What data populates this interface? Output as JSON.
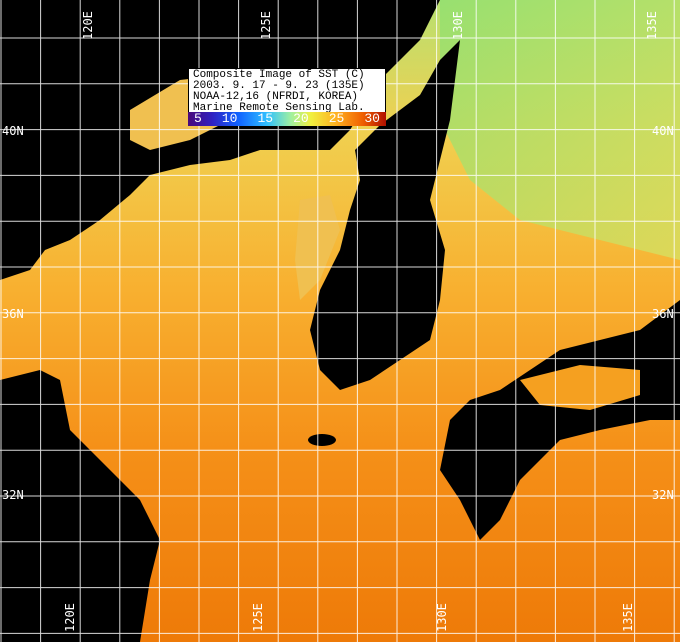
{
  "legend": {
    "lines": [
      "Composite Image of SST (C)",
      "2003. 9. 17 - 9. 23 (135E)",
      "NOAA-12,16 (NFRDI, KOREA)",
      "Marine Remote Sensing Lab."
    ],
    "scale_ticks": [
      "5",
      "10",
      "15",
      "20",
      "25",
      "30"
    ],
    "scale_unit": "C",
    "scale_range": [
      5,
      30
    ]
  },
  "labels": {
    "lon_top": [
      "120E",
      "125E",
      "130E",
      "135E"
    ],
    "lon_bottom": [
      "120E",
      "125E",
      "130E",
      "135E"
    ],
    "lat_left": [
      "40N",
      "36N",
      "32N"
    ],
    "lat_right": [
      "40N",
      "36N",
      "32N"
    ]
  },
  "colors": {
    "land": "#000000",
    "grid": "#ffffff",
    "warm_sea": "#f08a10",
    "cool_sea": "#b0e060"
  }
}
